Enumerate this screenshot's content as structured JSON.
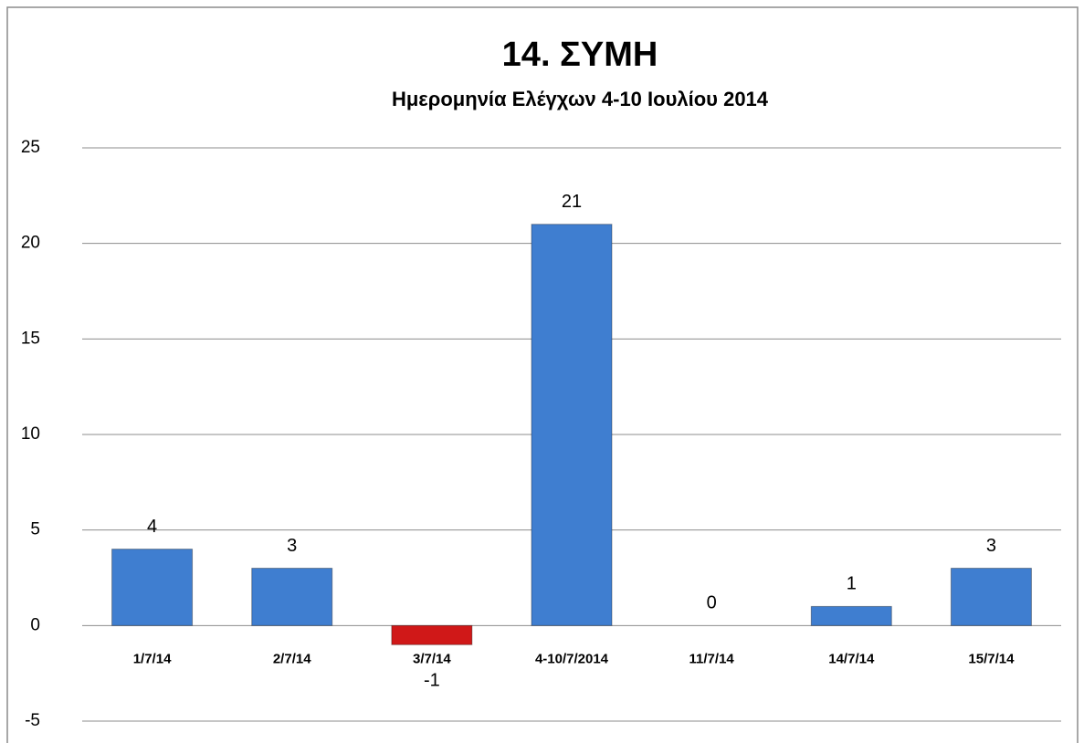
{
  "chart_data": {
    "type": "bar",
    "title": "14. ΣΥΜΗ",
    "subtitle": "Ημερομηνία Ελέγχων 4-10 Ιουλίου 2014",
    "categories": [
      "1/7/14",
      "2/7/14",
      "3/7/14",
      "4-10/7/2014",
      "11/7/14",
      "14/7/14",
      "15/7/14"
    ],
    "values": [
      4,
      3,
      -1,
      21,
      0,
      1,
      3
    ],
    "colors": [
      "#3f7ed0",
      "#3f7ed0",
      "#d01818",
      "#3f7ed0",
      "#3f7ed0",
      "#3f7ed0",
      "#3f7ed0"
    ],
    "ylim": [
      -5,
      25
    ],
    "yticks": [
      -5,
      0,
      5,
      10,
      15,
      20,
      25
    ],
    "grid": true
  }
}
